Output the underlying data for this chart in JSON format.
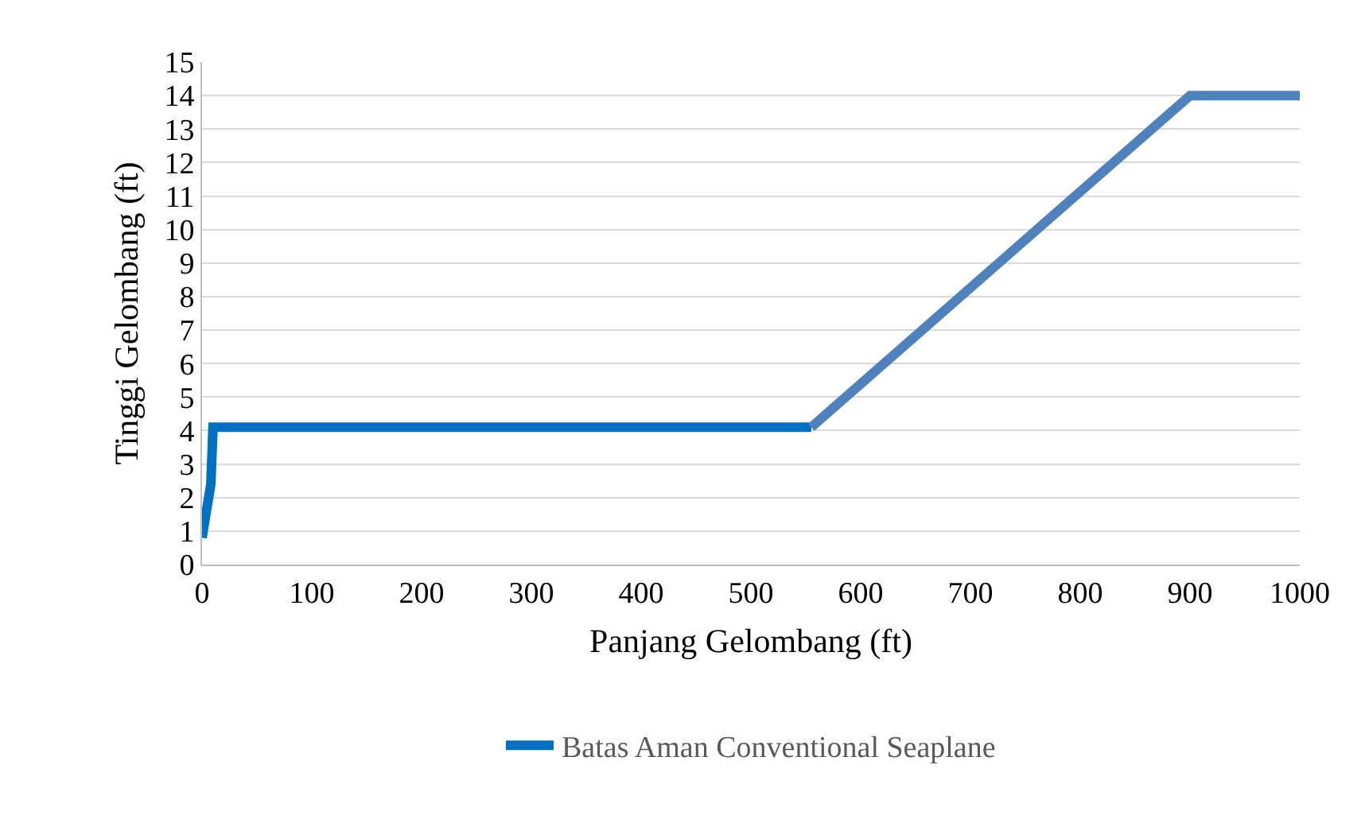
{
  "chart_data": {
    "type": "line",
    "xlabel": "Panjang Gelombang (ft)",
    "ylabel": "Tinggi Gelombang (ft)",
    "xlim": [
      0,
      1000
    ],
    "xticks": [
      0,
      100,
      200,
      300,
      400,
      500,
      600,
      700,
      800,
      900,
      1000
    ],
    "ylim": [
      0,
      15
    ],
    "yticks": [
      0,
      1,
      2,
      3,
      4,
      5,
      6,
      7,
      8,
      9,
      10,
      11,
      12,
      13,
      14,
      15
    ],
    "grid": "y",
    "legend": "bottom",
    "marker": "none",
    "line_style": "solid",
    "series": [
      {
        "name": "Batas Aman Conventional Seaplane",
        "color": "#0070c0",
        "x": [
          0,
          8,
          10,
          555
        ],
        "values": [
          0.8,
          2.4,
          4.1,
          4.1
        ]
      },
      {
        "color": "#4f81bd",
        "x": [
          555,
          900,
          1000
        ],
        "values": [
          4.1,
          14,
          14
        ]
      }
    ]
  }
}
